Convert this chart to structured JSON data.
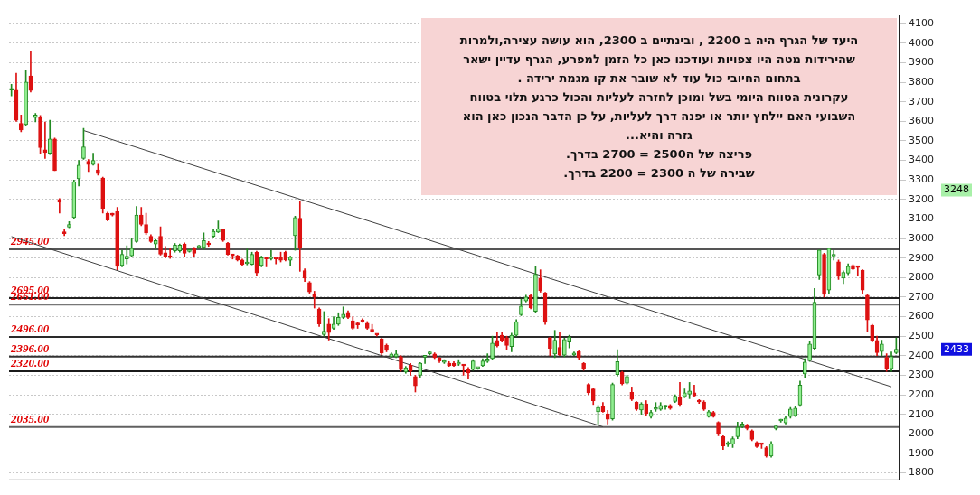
{
  "chart_data": {
    "type": "candlestick",
    "categories": [
      null,
      null,
      null,
      null,
      null,
      null,
      null,
      null,
      null,
      null,
      null,
      null,
      null,
      null,
      null,
      null,
      null,
      null,
      null,
      null,
      null,
      null,
      null,
      null,
      null,
      null,
      null,
      null,
      null,
      null,
      null,
      null,
      null,
      null,
      null,
      null,
      null,
      null,
      null,
      null,
      null,
      null,
      null,
      null,
      null,
      null,
      null,
      null,
      null,
      null,
      null,
      null,
      null,
      null,
      null,
      null,
      null,
      null,
      null,
      null,
      null,
      null,
      null,
      null,
      null,
      null,
      null,
      null,
      null,
      null,
      null,
      null,
      null,
      null,
      null,
      null,
      null,
      null,
      null,
      null,
      null,
      null,
      null,
      null,
      null,
      null,
      null,
      null,
      null,
      null,
      null,
      null,
      null,
      null,
      null,
      null,
      null,
      null,
      null,
      null,
      null,
      null,
      null,
      null,
      null,
      null,
      null,
      null,
      null,
      null,
      null,
      null,
      null,
      null,
      null,
      null,
      null,
      null,
      null,
      null,
      null,
      null,
      null,
      null,
      null,
      null,
      null,
      null,
      null,
      null,
      null,
      null,
      null,
      null,
      null,
      null,
      null,
      null,
      null,
      null,
      null,
      null,
      null,
      null,
      null,
      null,
      null,
      null,
      null,
      null,
      null,
      null,
      null,
      null,
      null,
      null,
      null,
      null,
      null,
      null,
      null,
      null,
      null,
      null,
      null,
      null,
      null,
      null,
      null,
      null,
      null,
      null,
      null,
      null,
      null,
      null,
      null,
      null,
      null,
      null,
      null,
      null,
      null,
      null,
      null
    ],
    "ohlc": [
      [
        3760,
        3790,
        3730,
        3765
      ],
      [
        3760,
        3846,
        3600,
        3606
      ],
      [
        3590,
        3633,
        3546,
        3556
      ],
      [
        3583,
        3860,
        3575,
        3801
      ],
      [
        3833,
        3959,
        3750,
        3758
      ],
      [
        3619,
        3640,
        3597,
        3633
      ],
      [
        3619,
        3630,
        3437,
        3466
      ],
      [
        3454,
        3597,
        3410,
        3440
      ],
      [
        3437,
        3606,
        3430,
        3510
      ],
      [
        3510,
        3515,
        3348,
        3348
      ],
      [
        3200,
        3205,
        3130,
        3186
      ],
      [
        3029,
        3048,
        3015,
        3025
      ],
      [
        3059,
        3087,
        3055,
        3072
      ],
      [
        3107,
        3300,
        3100,
        3291
      ],
      [
        3306,
        3400,
        3269,
        3376
      ],
      [
        3410,
        3564,
        3405,
        3470
      ],
      [
        3396,
        3405,
        3343,
        3379
      ],
      [
        3379,
        3437,
        3375,
        3400
      ],
      [
        3352,
        3380,
        3325,
        3332
      ],
      [
        3310,
        3315,
        3130,
        3155
      ],
      [
        3130,
        3135,
        3090,
        3094
      ],
      [
        3125,
        3130,
        3115,
        3120
      ],
      [
        3138,
        3160,
        2840,
        2857
      ],
      [
        2862,
        2940,
        2855,
        2919
      ],
      [
        2895,
        2963,
        2870,
        2910
      ],
      [
        2912,
        3000,
        2905,
        2950
      ],
      [
        2985,
        3164,
        2980,
        3120
      ],
      [
        3120,
        3160,
        3065,
        3072
      ],
      [
        3072,
        3130,
        3020,
        3029
      ],
      [
        3011,
        3020,
        2980,
        2985
      ],
      [
        2972,
        2995,
        2950,
        2990
      ],
      [
        3011,
        3060,
        2915,
        2920
      ],
      [
        2927,
        2960,
        2900,
        2908
      ],
      [
        2910,
        2950,
        2898,
        2903
      ],
      [
        2937,
        2975,
        2930,
        2967
      ],
      [
        2937,
        2972,
        2930,
        2967
      ],
      [
        2972,
        2978,
        2905,
        2924
      ],
      [
        2934,
        2940,
        2930,
        2936
      ],
      [
        2950,
        2955,
        2905,
        2924
      ],
      [
        2955,
        2965,
        2950,
        2959
      ],
      [
        2955,
        3029,
        2945,
        2990
      ],
      [
        2977,
        2985,
        2960,
        2968
      ],
      [
        3011,
        3045,
        3005,
        3037
      ],
      [
        3033,
        3090,
        3030,
        3050
      ],
      [
        3046,
        3050,
        2985,
        2990
      ],
      [
        2977,
        2980,
        2915,
        2919
      ],
      [
        2915,
        2920,
        2895,
        2912
      ],
      [
        2912,
        2915,
        2885,
        2890
      ],
      [
        2890,
        2895,
        2860,
        2866
      ],
      [
        2871,
        2946,
        2865,
        2873
      ],
      [
        2868,
        2930,
        2865,
        2919
      ],
      [
        2929,
        2935,
        2810,
        2824
      ],
      [
        2862,
        2910,
        2855,
        2902
      ],
      [
        2897,
        2905,
        2855,
        2895
      ],
      [
        2897,
        2940,
        2890,
        2905
      ],
      [
        2897,
        2900,
        2870,
        2895
      ],
      [
        2905,
        2930,
        2880,
        2888
      ],
      [
        2929,
        2935,
        2885,
        2890
      ],
      [
        2888,
        2910,
        2860,
        2905
      ],
      [
        3014,
        3115,
        2940,
        3108
      ],
      [
        3104,
        3192,
        2832,
        2956
      ],
      [
        2836,
        2845,
        2780,
        2797
      ],
      [
        2775,
        2780,
        2720,
        2727
      ],
      [
        2715,
        2730,
        2644,
        2701
      ],
      [
        2639,
        2645,
        2550,
        2562
      ],
      [
        2508,
        2626,
        2500,
        2526
      ],
      [
        2562,
        2590,
        2480,
        2518
      ],
      [
        2540,
        2600,
        2535,
        2562
      ],
      [
        2561,
        2620,
        2555,
        2596
      ],
      [
        2596,
        2650,
        2590,
        2613
      ],
      [
        2622,
        2630,
        2590,
        2596
      ],
      [
        2579,
        2600,
        2535,
        2540
      ],
      [
        2562,
        2570,
        2540,
        2558
      ],
      [
        2584,
        2590,
        2570,
        2575
      ],
      [
        2566,
        2575,
        2535,
        2540
      ],
      [
        2530,
        2560,
        2520,
        2526
      ],
      [
        2508,
        2512,
        2500,
        2506
      ],
      [
        2486,
        2490,
        2405,
        2413
      ],
      [
        2453,
        2460,
        2420,
        2427
      ],
      [
        2395,
        2415,
        2390,
        2409
      ],
      [
        2395,
        2430,
        2390,
        2409
      ],
      [
        2395,
        2400,
        2320,
        2329
      ],
      [
        2316,
        2345,
        2310,
        2338
      ],
      [
        2351,
        2360,
        2300,
        2320
      ],
      [
        2294,
        2300,
        2214,
        2246
      ],
      [
        2300,
        2365,
        2290,
        2362
      ],
      [
        2393,
        2400,
        2360,
        2395
      ],
      [
        2410,
        2420,
        2405,
        2413
      ],
      [
        2409,
        2415,
        2385,
        2390
      ],
      [
        2388,
        2392,
        2365,
        2373
      ],
      [
        2366,
        2380,
        2360,
        2368
      ],
      [
        2362,
        2370,
        2345,
        2348
      ],
      [
        2362,
        2370,
        2345,
        2348
      ],
      [
        2357,
        2380,
        2350,
        2360
      ],
      [
        2350,
        2355,
        2300,
        2348
      ],
      [
        2333,
        2340,
        2280,
        2311
      ],
      [
        2329,
        2380,
        2325,
        2373
      ],
      [
        2335,
        2340,
        2330,
        2337
      ],
      [
        2348,
        2385,
        2345,
        2373
      ],
      [
        2370,
        2410,
        2365,
        2384
      ],
      [
        2386,
        2500,
        2380,
        2465
      ],
      [
        2478,
        2520,
        2445,
        2450
      ],
      [
        2505,
        2520,
        2470,
        2478
      ],
      [
        2492,
        2500,
        2430,
        2453
      ],
      [
        2447,
        2515,
        2420,
        2505
      ],
      [
        2505,
        2585,
        2500,
        2574
      ],
      [
        2610,
        2690,
        2605,
        2654
      ],
      [
        2680,
        2710,
        2675,
        2700
      ],
      [
        2708,
        2712,
        2640,
        2645
      ],
      [
        2627,
        2856,
        2620,
        2817
      ],
      [
        2798,
        2840,
        2725,
        2732
      ],
      [
        2722,
        2725,
        2560,
        2570
      ],
      [
        2492,
        2495,
        2400,
        2438
      ],
      [
        2409,
        2530,
        2390,
        2480
      ],
      [
        2443,
        2520,
        2400,
        2403
      ],
      [
        2403,
        2490,
        2395,
        2483
      ],
      [
        2470,
        2505,
        2440,
        2496
      ],
      [
        2404,
        2420,
        2400,
        2406
      ],
      [
        2421,
        2425,
        2380,
        2390
      ],
      [
        2361,
        2365,
        2325,
        2332
      ],
      [
        2253,
        2258,
        2200,
        2210
      ],
      [
        2230,
        2235,
        2150,
        2169
      ],
      [
        2113,
        2145,
        2050,
        2135
      ],
      [
        2141,
        2160,
        2110,
        2114
      ],
      [
        2103,
        2120,
        2050,
        2074
      ],
      [
        2077,
        2260,
        2070,
        2253
      ],
      [
        2303,
        2431,
        2295,
        2370
      ],
      [
        2314,
        2320,
        2250,
        2256
      ],
      [
        2259,
        2300,
        2255,
        2294
      ],
      [
        2212,
        2240,
        2170,
        2176
      ],
      [
        2163,
        2165,
        2120,
        2125
      ],
      [
        2122,
        2160,
        2100,
        2154
      ],
      [
        2154,
        2170,
        2095,
        2103
      ],
      [
        2088,
        2120,
        2080,
        2110
      ],
      [
        2125,
        2160,
        2115,
        2127
      ],
      [
        2125,
        2160,
        2120,
        2145
      ],
      [
        2137,
        2145,
        2125,
        2139
      ],
      [
        2145,
        2150,
        2125,
        2130
      ],
      [
        2166,
        2200,
        2160,
        2193
      ],
      [
        2190,
        2263,
        2140,
        2151
      ],
      [
        2190,
        2230,
        2185,
        2210
      ],
      [
        2203,
        2263,
        2180,
        2220
      ],
      [
        2210,
        2250,
        2190,
        2195
      ],
      [
        2165,
        2175,
        2155,
        2163
      ],
      [
        2163,
        2170,
        2120,
        2125
      ],
      [
        2088,
        2120,
        2085,
        2113
      ],
      [
        2110,
        2115,
        2085,
        2088
      ],
      [
        2059,
        2062,
        1990,
        1998
      ],
      [
        1986,
        1990,
        1920,
        1938
      ],
      [
        1945,
        1960,
        1935,
        1947
      ],
      [
        1947,
        1985,
        1930,
        1976
      ],
      [
        1986,
        2060,
        1975,
        2033
      ],
      [
        2037,
        2060,
        2030,
        2051
      ],
      [
        2044,
        2050,
        2020,
        2027
      ],
      [
        2016,
        2020,
        1965,
        1972
      ],
      [
        1956,
        1960,
        1930,
        1934
      ],
      [
        1947,
        1950,
        1925,
        1945
      ],
      [
        1929,
        1935,
        1880,
        1886
      ],
      [
        1886,
        1960,
        1880,
        1950
      ],
      [
        2027,
        2040,
        2020,
        2040
      ],
      [
        2066,
        2075,
        2060,
        2068
      ],
      [
        2056,
        2090,
        2050,
        2081
      ],
      [
        2088,
        2135,
        2080,
        2127
      ],
      [
        2093,
        2140,
        2088,
        2132
      ],
      [
        2147,
        2270,
        2140,
        2250
      ],
      [
        2307,
        2385,
        2290,
        2368
      ],
      [
        2377,
        2475,
        2370,
        2460
      ],
      [
        2438,
        2744,
        2430,
        2674
      ],
      [
        2813,
        2941,
        2790,
        2941
      ],
      [
        2919,
        2925,
        2700,
        2714
      ],
      [
        2736,
        2950,
        2720,
        2950
      ],
      [
        2910,
        2940,
        2890,
        2912
      ],
      [
        2881,
        2890,
        2790,
        2806
      ],
      [
        2797,
        2835,
        2770,
        2827
      ],
      [
        2823,
        2870,
        2815,
        2858
      ],
      [
        2862,
        2866,
        2840,
        2845
      ],
      [
        2855,
        2860,
        2810,
        2852
      ],
      [
        2838,
        2840,
        2720,
        2736
      ],
      [
        2710,
        2712,
        2522,
        2583
      ],
      [
        2556,
        2560,
        2470,
        2478
      ],
      [
        2478,
        2500,
        2400,
        2416
      ],
      [
        2421,
        2480,
        2400,
        2460
      ],
      [
        2392,
        2410,
        2320,
        2334
      ],
      [
        2334,
        2420,
        2320,
        2396
      ],
      [
        2416,
        2491,
        2410,
        2433
      ]
    ],
    "series": [
      {
        "type": "line",
        "color": "#404040",
        "values": [
          null,
          null,
          null,
          null,
          null,
          null,
          null,
          null,
          null,
          null,
          null,
          null,
          null,
          null,
          null,
          3553,
          null,
          null,
          null,
          null,
          null,
          null,
          null,
          null,
          null,
          null,
          null,
          null,
          null,
          null,
          null,
          null,
          null,
          null,
          null,
          null,
          null,
          null,
          null,
          null,
          null,
          null,
          null,
          null,
          null,
          null,
          null,
          null,
          null,
          null,
          null,
          null,
          null,
          null,
          null,
          null,
          null,
          null,
          null,
          null,
          null,
          null,
          null,
          null,
          null,
          null,
          null,
          null,
          null,
          null,
          null,
          null,
          null,
          null,
          null,
          null,
          null,
          null,
          null,
          null,
          null,
          null,
          null,
          null,
          null,
          null,
          null,
          null,
          null,
          null,
          null,
          null,
          null,
          null,
          null,
          null,
          null,
          null,
          null,
          null,
          null,
          null,
          null,
          null,
          null,
          null,
          null,
          null,
          null,
          null,
          null,
          null,
          null,
          null,
          null,
          null,
          null,
          null,
          null,
          null,
          null,
          null,
          null,
          null,
          null,
          null,
          null,
          null,
          null,
          null,
          null,
          null,
          null,
          null,
          null,
          null,
          null,
          null,
          null,
          null,
          null,
          null,
          null,
          null,
          null,
          null,
          null,
          null,
          null,
          null,
          null,
          null,
          null,
          null,
          null,
          null,
          null,
          null,
          null,
          null,
          null,
          null,
          null,
          null,
          null,
          null,
          null,
          null,
          null,
          null,
          null,
          null,
          null,
          null,
          null,
          null,
          null,
          null,
          null,
          null,
          null,
          null,
          null,
          2241,
          null
        ]
      },
      {
        "type": "line",
        "color": "#404040",
        "values": [
          3010,
          null,
          null,
          null,
          null,
          null,
          null,
          null,
          null,
          null,
          null,
          null,
          null,
          null,
          null,
          null,
          null,
          null,
          null,
          null,
          null,
          null,
          null,
          null,
          null,
          null,
          null,
          null,
          null,
          null,
          null,
          null,
          null,
          null,
          null,
          null,
          null,
          null,
          null,
          null,
          null,
          null,
          null,
          null,
          null,
          null,
          null,
          null,
          null,
          null,
          null,
          null,
          null,
          null,
          null,
          null,
          null,
          null,
          null,
          null,
          null,
          null,
          null,
          null,
          null,
          null,
          null,
          null,
          null,
          null,
          null,
          null,
          null,
          null,
          null,
          null,
          null,
          null,
          null,
          null,
          null,
          null,
          null,
          null,
          null,
          null,
          null,
          null,
          null,
          null,
          null,
          null,
          null,
          null,
          null,
          null,
          null,
          null,
          null,
          null,
          null,
          null,
          null,
          null,
          null,
          null,
          null,
          null,
          null,
          null,
          null,
          null,
          null,
          null,
          null,
          null,
          null,
          null,
          null,
          null,
          null,
          null,
          null,
          2036,
          null,
          null,
          null,
          null,
          null,
          null,
          null,
          null,
          null,
          null,
          null,
          null,
          null,
          null,
          null,
          null,
          null,
          null,
          null,
          null,
          null,
          null,
          null,
          null,
          null,
          null,
          null,
          null,
          null,
          null,
          null,
          null,
          null,
          null,
          null,
          null,
          null,
          null,
          null,
          null,
          null,
          null,
          null,
          null,
          null,
          null,
          null,
          null,
          null,
          null,
          null,
          null,
          null,
          null,
          null,
          null,
          null,
          null,
          null,
          null,
          null
        ]
      }
    ],
    "ylim": [
      1770,
      4140
    ],
    "yticks": [
      1800,
      1900,
      2000,
      2100,
      2200,
      2300,
      2400,
      2500,
      2600,
      2700,
      2800,
      2900,
      3000,
      3100,
      3200,
      3300,
      3400,
      3500,
      3600,
      3700,
      3800,
      3900,
      4000,
      4100
    ],
    "grid": "y",
    "tick_labels": "y",
    "ref_lines": [
      {
        "axis": "y",
        "value": 2945,
        "label": "2945.00",
        "color": "#555555"
      },
      {
        "axis": "y",
        "value": 2695,
        "label": "2695.00",
        "color": "#222222"
      },
      {
        "axis": "y",
        "value": 2661,
        "label": "2661.00",
        "color": "#777777"
      },
      {
        "axis": "y",
        "value": 2496,
        "label": "2496.00",
        "color": "#2a2a2a"
      },
      {
        "axis": "y",
        "value": 2396,
        "label": "2396.00",
        "color": "#333333"
      },
      {
        "axis": "y",
        "value": 2320,
        "label": "2320.00",
        "color": "#1a1a1a"
      },
      {
        "axis": "y",
        "value": 2035,
        "label": "2035.00",
        "color": "#606060"
      }
    ],
    "annotations": [
      "היעד של הגרף היה ב  2200 , ובינתיים ב 2300, הוא עושה עצירה,ולמרות",
      "שהירידות מטה היו צפויות ועודכנו כאן כל הזמן למפרע, הגרף עדיין ישאר",
      "בתחום החיובי כול עוד לא שובר את קו מגמת ירידה .",
      "עקרונית הטווח היומי בשל ומוכן לחזרה לעליות והכול כרגע תלוי בטווח",
      "השבועי האם יילחץ יותר או יפנה דרך לעליות, על כן הדבר הנכון כאן הוא",
      "גזרה והיא...",
      "פריצה של  ה2500 = 2700 בדרך.",
      "שבירה של ה 2300 = 2200 בדרך.",
      "3248",
      "2433"
    ]
  }
}
